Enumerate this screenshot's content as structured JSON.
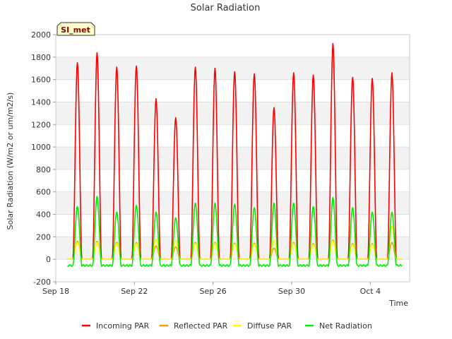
{
  "chart_data": {
    "type": "line",
    "title": "Solar Radiation",
    "xlabel": "Time",
    "ylabel": "Solar Radiation (W/m2 or um/m2/s)",
    "ylim": [
      -200,
      2000
    ],
    "yticks": [
      -200,
      0,
      200,
      400,
      600,
      800,
      1000,
      1200,
      1400,
      1600,
      1800,
      2000
    ],
    "xlim_days": [
      0,
      18
    ],
    "xticks": [
      {
        "day": 0,
        "label": "Sep 18"
      },
      {
        "day": 4,
        "label": "Sep 22"
      },
      {
        "day": 8,
        "label": "Sep 26"
      },
      {
        "day": 12,
        "label": "Sep 30"
      },
      {
        "day": 16,
        "label": "Oct 4"
      }
    ],
    "grid": "horizontal bands",
    "legend_placement": "bottom",
    "badge": "SI_met",
    "series": [
      {
        "name": "Incoming PAR",
        "color": "#ff0000",
        "night_value": 0,
        "daily_peaks": [
          1750,
          1840,
          1710,
          1720,
          1430,
          1260,
          1710,
          1700,
          1670,
          1650,
          1350,
          1660,
          1640,
          1920,
          1620,
          1610,
          1660
        ]
      },
      {
        "name": "Reflected PAR",
        "color": "#ff9900",
        "night_value": 0,
        "daily_peaks": [
          160,
          160,
          150,
          150,
          120,
          110,
          150,
          150,
          145,
          145,
          100,
          150,
          140,
          170,
          140,
          140,
          150
        ]
      },
      {
        "name": "Diffuse PAR",
        "color": "#ffff00",
        "night_value": 0,
        "daily_peaks": [
          150,
          150,
          140,
          140,
          180,
          170,
          140,
          140,
          135,
          135,
          170,
          140,
          130,
          160,
          130,
          130,
          300
        ]
      },
      {
        "name": "Net Radiation",
        "color": "#00ee00",
        "night_value": -55,
        "daily_peaks": [
          470,
          560,
          420,
          480,
          420,
          370,
          500,
          500,
          490,
          460,
          500,
          500,
          470,
          550,
          460,
          420,
          420
        ]
      }
    ]
  }
}
